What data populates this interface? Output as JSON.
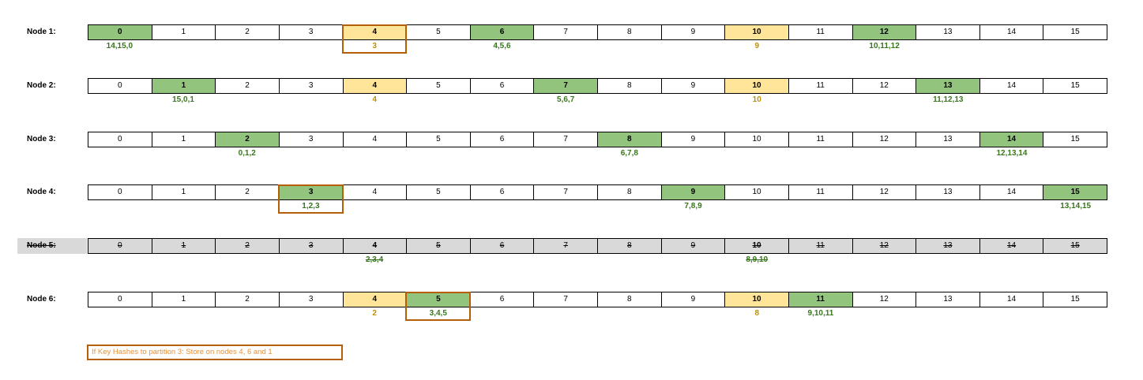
{
  "partitions": [
    "0",
    "1",
    "2",
    "3",
    "4",
    "5",
    "6",
    "7",
    "8",
    "9",
    "10",
    "11",
    "12",
    "13",
    "14",
    "15"
  ],
  "nodes": [
    {
      "label": "Node 1:",
      "removed": false,
      "primary": [
        0,
        6,
        12
      ],
      "hint": [
        4,
        10
      ],
      "subs": [
        {
          "col": 0,
          "text": "14,15,0",
          "color": "green"
        },
        {
          "col": 4,
          "text": "3",
          "color": "orange"
        },
        {
          "col": 6,
          "text": "4,5,6",
          "color": "green"
        },
        {
          "col": 10,
          "text": "9",
          "color": "orange"
        },
        {
          "col": 12,
          "text": "10,11,12",
          "color": "green"
        }
      ]
    },
    {
      "label": "Node 2:",
      "removed": false,
      "primary": [
        1,
        7,
        13
      ],
      "hint": [
        4,
        10
      ],
      "subs": [
        {
          "col": 1,
          "text": "15,0,1",
          "color": "green"
        },
        {
          "col": 4,
          "text": "4",
          "color": "orange"
        },
        {
          "col": 7,
          "text": "5,6,7",
          "color": "green"
        },
        {
          "col": 10,
          "text": "10",
          "color": "orange"
        },
        {
          "col": 13,
          "text": "11,12,13",
          "color": "green"
        }
      ]
    },
    {
      "label": "Node 3:",
      "removed": false,
      "primary": [
        2,
        8,
        14
      ],
      "hint": [],
      "subs": [
        {
          "col": 2,
          "text": "0,1,2",
          "color": "green"
        },
        {
          "col": 8,
          "text": "6,7,8",
          "color": "green"
        },
        {
          "col": 14,
          "text": "12,13,14",
          "color": "green"
        }
      ]
    },
    {
      "label": "Node 4:",
      "removed": false,
      "primary": [
        3,
        9,
        15
      ],
      "hint": [],
      "subs": [
        {
          "col": 3,
          "text": "1,2,3",
          "color": "green"
        },
        {
          "col": 9,
          "text": "7,8,9",
          "color": "green"
        },
        {
          "col": 15,
          "text": "13,14,15",
          "color": "green"
        }
      ]
    },
    {
      "label": "Node 5:",
      "removed": true,
      "primary": [
        4,
        10
      ],
      "hint": [],
      "subs": [
        {
          "col": 4,
          "text": "2,3,4",
          "color": "green"
        },
        {
          "col": 10,
          "text": "8,9,10",
          "color": "green"
        }
      ]
    },
    {
      "label": "Node 6:",
      "removed": false,
      "primary": [
        5,
        11
      ],
      "hint": [
        4,
        10
      ],
      "subs": [
        {
          "col": 4,
          "text": "2",
          "color": "orange"
        },
        {
          "col": 5,
          "text": "3,4,5",
          "color": "green"
        },
        {
          "col": 10,
          "text": "8",
          "color": "orange"
        },
        {
          "col": 11,
          "text": "9,10,11",
          "color": "green"
        }
      ]
    }
  ],
  "highlight_boxes": [
    {
      "node": 0,
      "col": 4
    },
    {
      "node": 3,
      "col": 3
    },
    {
      "node": 5,
      "col": 5
    }
  ],
  "note": "If Key Hashes to partition 3: Store on nodes 4, 6 and 1",
  "colors": {
    "primary": "#93c47d",
    "hint": "#ffe599",
    "removed": "#d9d9d9",
    "highlight": "#b45f06",
    "green_text": "#38761d",
    "orange_text": "#bf9000",
    "note_text": "#e69138"
  }
}
